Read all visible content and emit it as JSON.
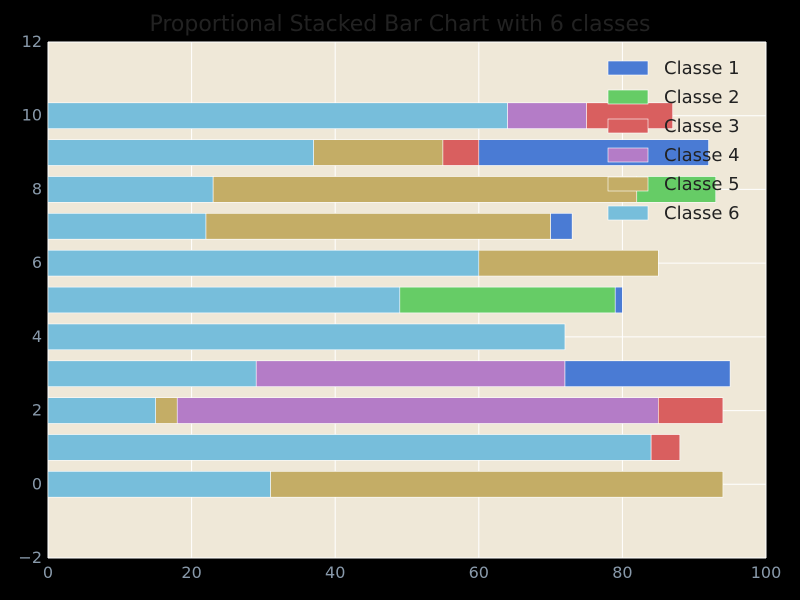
{
  "chart_data": {
    "type": "bar",
    "orientation": "horizontal",
    "stacked": true,
    "title": "Proportional Stacked Bar Chart with 6 classes",
    "xlabel": "",
    "ylabel": "",
    "xlim": [
      0,
      100
    ],
    "ylim": [
      -2,
      12
    ],
    "xticks": [
      0,
      20,
      40,
      60,
      80,
      100
    ],
    "yticks": [
      -2,
      0,
      2,
      4,
      6,
      8,
      10,
      12
    ],
    "grid": true,
    "legend_position": "top-right",
    "background_color": "#efe8d8",
    "bar_height": 0.7,
    "categories": [
      0,
      1,
      2,
      3,
      4,
      5,
      6,
      7,
      8,
      9,
      10
    ],
    "stack_order": [
      "Classe 6",
      "Classe 5",
      "Classe 4",
      "Classe 3",
      "Classe 2",
      "Classe 1"
    ],
    "series": [
      {
        "name": "Classe 1",
        "color": "#4a7bd4",
        "values": [
          0,
          0,
          0,
          23,
          0,
          1,
          0,
          3,
          0,
          32,
          0
        ]
      },
      {
        "name": "Classe 2",
        "color": "#66cc66",
        "values": [
          0,
          0,
          0,
          0,
          0,
          30,
          0,
          0,
          11,
          0,
          0
        ]
      },
      {
        "name": "Classe 3",
        "color": "#d95f5f",
        "values": [
          0,
          4,
          9,
          0,
          0,
          0,
          0,
          0,
          0,
          5,
          12
        ]
      },
      {
        "name": "Classe 4",
        "color": "#b47cc7",
        "values": [
          0,
          0,
          67,
          43,
          0,
          0,
          0,
          0,
          0,
          0,
          11
        ]
      },
      {
        "name": "Classe 5",
        "color": "#c4ad66",
        "values": [
          63,
          0,
          3,
          0,
          0,
          0,
          25,
          48,
          59,
          18,
          0
        ]
      },
      {
        "name": "Classe 6",
        "color": "#77bedb",
        "values": [
          31,
          84,
          15,
          29,
          72,
          49,
          60,
          22,
          23,
          37,
          64
        ]
      }
    ]
  }
}
